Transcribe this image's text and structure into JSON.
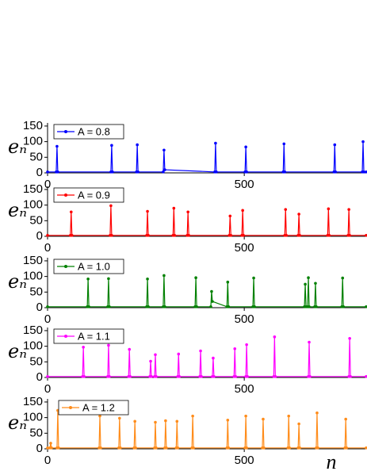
{
  "chart_data": [
    {
      "type": "line",
      "y_label": "eₙ",
      "xlim": [
        0,
        810
      ],
      "ylim": [
        0,
        160
      ],
      "xticks": [
        0,
        500
      ],
      "yticks": [
        0,
        50,
        100,
        150
      ],
      "x": [
        0,
        22,
        24,
        26,
        161,
        163,
        165,
        226,
        228,
        230,
        294,
        296,
        298,
        425,
        427,
        429,
        502,
        504,
        506,
        599,
        601,
        603,
        728,
        730,
        732,
        800,
        802,
        804,
        810
      ],
      "series": [
        {
          "name": "A = 0.8",
          "color": "#0000ff",
          "values": [
            3,
            3,
            85,
            3,
            3,
            88,
            3,
            3,
            90,
            3,
            3,
            73,
            10,
            3,
            95,
            3,
            3,
            83,
            3,
            3,
            93,
            3,
            3,
            90,
            3,
            3,
            100,
            3,
            3
          ]
        }
      ]
    },
    {
      "type": "line",
      "y_label": "eₙ",
      "xlim": [
        0,
        810
      ],
      "ylim": [
        0,
        160
      ],
      "xticks": [
        0,
        500
      ],
      "yticks": [
        0,
        50,
        100,
        150
      ],
      "x": [
        0,
        58,
        60,
        62,
        159,
        161,
        163,
        252,
        254,
        256,
        319,
        321,
        323,
        355,
        357,
        359,
        462,
        464,
        466,
        494,
        496,
        498,
        603,
        605,
        607,
        637,
        639,
        641,
        712,
        714,
        716,
        764,
        766,
        768,
        810
      ],
      "series": [
        {
          "name": "A = 0.9",
          "color": "#ff0000",
          "values": [
            3,
            3,
            78,
            3,
            3,
            98,
            3,
            3,
            80,
            3,
            3,
            90,
            3,
            3,
            78,
            3,
            3,
            65,
            3,
            3,
            83,
            3,
            3,
            86,
            3,
            3,
            71,
            3,
            3,
            88,
            3,
            3,
            86,
            3,
            3
          ]
        }
      ]
    },
    {
      "type": "line",
      "y_label": "eₙ",
      "xlim": [
        0,
        810
      ],
      "ylim": [
        0,
        160
      ],
      "xticks": [
        0,
        500
      ],
      "yticks": [
        0,
        50,
        100,
        150
      ],
      "x": [
        0,
        101,
        103,
        105,
        153,
        155,
        157,
        252,
        254,
        256,
        294,
        296,
        298,
        375,
        377,
        379,
        415,
        417,
        419,
        456,
        458,
        460,
        522,
        524,
        526,
        653,
        655,
        657,
        661,
        663,
        665,
        679,
        681,
        683,
        748,
        750,
        752,
        810
      ],
      "series": [
        {
          "name": "A = 1.0",
          "color": "#008000",
          "values": [
            3,
            3,
            92,
            3,
            3,
            93,
            3,
            3,
            92,
            3,
            3,
            103,
            3,
            3,
            96,
            3,
            3,
            52,
            20,
            3,
            82,
            3,
            3,
            95,
            3,
            3,
            75,
            3,
            3,
            96,
            3,
            3,
            78,
            3,
            3,
            95,
            3,
            3
          ]
        }
      ]
    },
    {
      "type": "line",
      "y_label": "eₙ",
      "xlim": [
        0,
        810
      ],
      "ylim": [
        0,
        160
      ],
      "xticks": [
        0,
        500
      ],
      "yticks": [
        0,
        50,
        100,
        150
      ],
      "x": [
        0,
        89,
        91,
        93,
        153,
        155,
        157,
        206,
        208,
        210,
        260,
        262,
        264,
        272,
        274,
        276,
        331,
        333,
        335,
        387,
        389,
        391,
        419,
        421,
        423,
        474,
        476,
        478,
        504,
        506,
        508,
        575,
        577,
        579,
        663,
        665,
        667,
        766,
        768,
        770,
        810
      ],
      "series": [
        {
          "name": "A = 1.1",
          "color": "#ff00ff",
          "values": [
            3,
            3,
            97,
            3,
            3,
            103,
            3,
            3,
            90,
            3,
            3,
            52,
            3,
            3,
            73,
            3,
            3,
            75,
            3,
            3,
            85,
            3,
            3,
            62,
            3,
            3,
            92,
            3,
            3,
            105,
            3,
            3,
            130,
            3,
            3,
            113,
            3,
            3,
            125,
            3,
            3
          ]
        }
      ]
    },
    {
      "type": "line",
      "y_label": "eₙ",
      "x_label": "n",
      "xlim": [
        0,
        810
      ],
      "ylim": [
        0,
        160
      ],
      "xticks": [
        0,
        500
      ],
      "yticks": [
        0,
        50,
        100,
        150
      ],
      "x": [
        0,
        6,
        8,
        10,
        24,
        26,
        28,
        131,
        133,
        135,
        181,
        183,
        185,
        220,
        222,
        224,
        272,
        274,
        276,
        298,
        300,
        302,
        327,
        329,
        331,
        367,
        369,
        371,
        456,
        458,
        460,
        502,
        504,
        506,
        546,
        548,
        550,
        611,
        613,
        615,
        637,
        639,
        641,
        683,
        685,
        687,
        756,
        758,
        760,
        810
      ],
      "series": [
        {
          "name": "A = 1.2",
          "color": "#ff8c1a",
          "values": [
            3,
            3,
            18,
            3,
            3,
            123,
            3,
            3,
            105,
            3,
            3,
            98,
            3,
            3,
            88,
            3,
            3,
            85,
            3,
            3,
            90,
            3,
            3,
            88,
            3,
            3,
            105,
            3,
            3,
            92,
            3,
            3,
            105,
            3,
            3,
            95,
            3,
            3,
            105,
            3,
            3,
            80,
            3,
            3,
            115,
            3,
            3,
            95,
            3,
            3
          ]
        }
      ]
    }
  ]
}
